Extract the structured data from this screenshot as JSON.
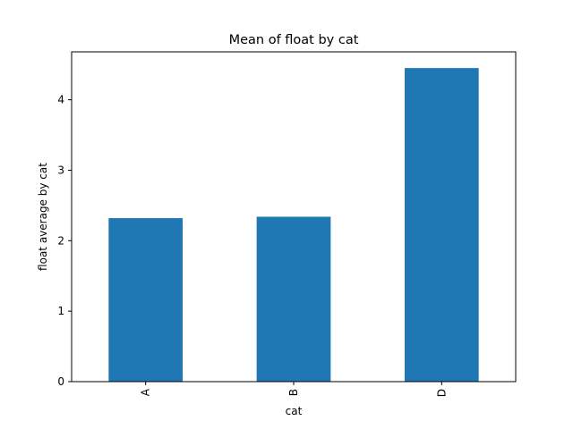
{
  "chart_data": {
    "type": "bar",
    "title": "Mean of float by cat",
    "xlabel": "cat",
    "ylabel": "float average by cat",
    "categories": [
      "A",
      "B",
      "D"
    ],
    "values": [
      2.32,
      2.34,
      4.45
    ],
    "ylim": [
      0,
      4.68
    ],
    "yticks": [
      0,
      1,
      2,
      3,
      4
    ],
    "grid": false,
    "bar_color": "#1f77b4"
  }
}
